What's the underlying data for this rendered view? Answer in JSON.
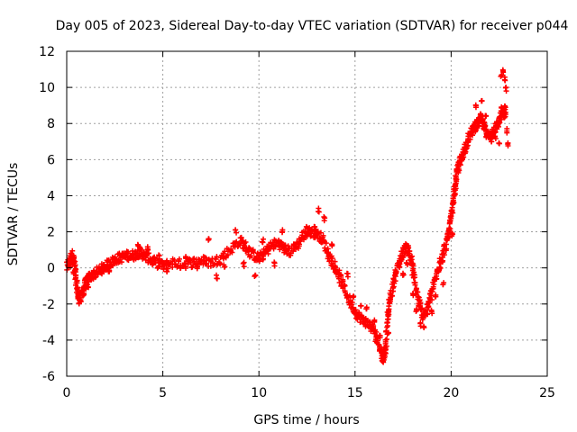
{
  "chart_data": {
    "type": "scatter",
    "title": "Day 005 of 2023, Sidereal Day-to-day VTEC variation (SDTVAR) for receiver p044",
    "xlabel": "GPS time / hours",
    "ylabel": "SDTVAR / TECUs",
    "xlim": [
      0,
      25
    ],
    "ylim": [
      -6,
      12
    ],
    "xticks": [
      0,
      5,
      10,
      15,
      20,
      25
    ],
    "yticks": [
      -6,
      -4,
      -2,
      0,
      2,
      4,
      6,
      8,
      10,
      12
    ],
    "grid": true,
    "marker": "+",
    "color": "#ff0000",
    "series": [
      {
        "name": "p044",
        "trace": [
          [
            0.0,
            0.0
          ],
          [
            0.15,
            0.5
          ],
          [
            0.3,
            0.7
          ],
          [
            0.4,
            0.3
          ],
          [
            0.5,
            -0.8
          ],
          [
            0.6,
            -1.6
          ],
          [
            0.7,
            -1.8
          ],
          [
            0.85,
            -1.2
          ],
          [
            1.0,
            -0.8
          ],
          [
            1.2,
            -0.5
          ],
          [
            1.5,
            -0.3
          ],
          [
            1.8,
            -0.1
          ],
          [
            2.0,
            0.1
          ],
          [
            2.3,
            0.3
          ],
          [
            2.6,
            0.5
          ],
          [
            2.9,
            0.6
          ],
          [
            3.2,
            0.7
          ],
          [
            3.5,
            0.7
          ],
          [
            3.8,
            0.9
          ],
          [
            4.0,
            0.7
          ],
          [
            4.3,
            0.5
          ],
          [
            4.6,
            0.3
          ],
          [
            5.0,
            0.1
          ],
          [
            5.5,
            0.3
          ],
          [
            6.0,
            0.2
          ],
          [
            6.5,
            0.3
          ],
          [
            7.0,
            0.4
          ],
          [
            7.5,
            0.3
          ],
          [
            8.0,
            0.5
          ],
          [
            8.5,
            1.0
          ],
          [
            9.0,
            1.5
          ],
          [
            9.3,
            1.2
          ],
          [
            9.6,
            0.8
          ],
          [
            10.0,
            0.5
          ],
          [
            10.3,
            0.8
          ],
          [
            10.6,
            1.2
          ],
          [
            11.0,
            1.4
          ],
          [
            11.3,
            1.1
          ],
          [
            11.6,
            0.9
          ],
          [
            12.0,
            1.3
          ],
          [
            12.3,
            1.8
          ],
          [
            12.7,
            2.0
          ],
          [
            13.0,
            1.9
          ],
          [
            13.3,
            1.6
          ],
          [
            13.6,
            0.8
          ],
          [
            13.9,
            0.2
          ],
          [
            14.2,
            -0.5
          ],
          [
            14.5,
            -1.3
          ],
          [
            14.8,
            -2.0
          ],
          [
            15.1,
            -2.6
          ],
          [
            15.4,
            -2.9
          ],
          [
            15.7,
            -3.1
          ],
          [
            16.0,
            -3.5
          ],
          [
            16.2,
            -4.1
          ],
          [
            16.4,
            -4.8
          ],
          [
            16.5,
            -5.0
          ],
          [
            16.6,
            -4.2
          ],
          [
            16.7,
            -2.8
          ],
          [
            16.8,
            -1.8
          ],
          [
            17.0,
            -0.9
          ],
          [
            17.2,
            0.0
          ],
          [
            17.4,
            0.6
          ],
          [
            17.6,
            1.1
          ],
          [
            17.8,
            1.0
          ],
          [
            17.95,
            0.3
          ],
          [
            18.1,
            -0.8
          ],
          [
            18.3,
            -1.8
          ],
          [
            18.5,
            -2.6
          ],
          [
            18.7,
            -2.5
          ],
          [
            18.9,
            -1.8
          ],
          [
            19.1,
            -0.9
          ],
          [
            19.3,
            -0.2
          ],
          [
            19.5,
            0.5
          ],
          [
            19.7,
            1.2
          ],
          [
            19.9,
            2.0
          ],
          [
            20.0,
            2.8
          ],
          [
            20.1,
            3.6
          ],
          [
            20.2,
            4.4
          ],
          [
            20.3,
            5.3
          ],
          [
            20.45,
            5.8
          ],
          [
            20.6,
            6.3
          ],
          [
            20.8,
            6.9
          ],
          [
            21.0,
            7.4
          ],
          [
            21.2,
            7.8
          ],
          [
            21.4,
            8.0
          ],
          [
            21.55,
            8.3
          ],
          [
            21.7,
            7.9
          ],
          [
            21.85,
            7.4
          ],
          [
            22.0,
            7.3
          ],
          [
            22.2,
            7.6
          ],
          [
            22.4,
            7.9
          ],
          [
            22.55,
            8.3
          ],
          [
            22.7,
            8.6
          ],
          [
            22.85,
            8.5
          ]
        ],
        "extra_points": [
          [
            0.2,
            0.1
          ],
          [
            0.35,
            -0.2
          ],
          [
            0.55,
            -1.2
          ],
          [
            0.9,
            -1.5
          ],
          [
            1.1,
            -1.1
          ],
          [
            2.2,
            -0.2
          ],
          [
            3.7,
            1.3
          ],
          [
            4.2,
            1.1
          ],
          [
            4.8,
            0.6
          ],
          [
            5.2,
            -0.1
          ],
          [
            6.2,
            0.6
          ],
          [
            6.8,
            0.0
          ],
          [
            7.4,
            1.6
          ],
          [
            7.8,
            -0.5
          ],
          [
            8.2,
            0.1
          ],
          [
            8.8,
            2.0
          ],
          [
            9.2,
            0.2
          ],
          [
            9.8,
            -0.5
          ],
          [
            10.2,
            1.5
          ],
          [
            10.8,
            0.2
          ],
          [
            11.2,
            2.0
          ],
          [
            12.5,
            2.3
          ],
          [
            12.9,
            2.2
          ],
          [
            13.1,
            3.2
          ],
          [
            13.4,
            2.7
          ],
          [
            13.8,
            1.2
          ],
          [
            14.0,
            -0.2
          ],
          [
            14.3,
            -1.0
          ],
          [
            14.6,
            -0.4
          ],
          [
            14.9,
            -1.6
          ],
          [
            15.3,
            -2.0
          ],
          [
            15.6,
            -2.3
          ],
          [
            16.0,
            -3.0
          ],
          [
            16.3,
            -3.8
          ],
          [
            16.45,
            -5.2
          ],
          [
            16.75,
            -3.6
          ],
          [
            17.1,
            -0.3
          ],
          [
            17.5,
            -0.3
          ],
          [
            17.7,
            0.3
          ],
          [
            18.0,
            -1.4
          ],
          [
            18.2,
            -2.3
          ],
          [
            18.4,
            -3.1
          ],
          [
            18.6,
            -3.3
          ],
          [
            19.0,
            -2.4
          ],
          [
            19.2,
            -1.6
          ],
          [
            19.4,
            0.4
          ],
          [
            19.6,
            -0.9
          ],
          [
            19.8,
            1.6
          ],
          [
            20.05,
            1.8
          ],
          [
            20.25,
            4.7
          ],
          [
            21.3,
            8.9
          ],
          [
            21.6,
            9.2
          ],
          [
            21.8,
            8.4
          ],
          [
            22.1,
            7.1
          ],
          [
            22.3,
            7.2
          ],
          [
            22.5,
            7.0
          ],
          [
            22.6,
            10.7
          ],
          [
            22.7,
            10.9
          ],
          [
            22.8,
            10.5
          ],
          [
            22.85,
            9.9
          ],
          [
            22.9,
            7.6
          ],
          [
            22.95,
            6.8
          ],
          [
            22.6,
            8.9
          ],
          [
            22.8,
            8.9
          ]
        ]
      }
    ]
  }
}
